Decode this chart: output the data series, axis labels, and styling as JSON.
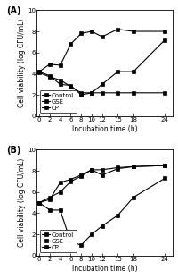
{
  "panel_A": {
    "label": "(A)",
    "x": [
      0,
      2,
      4,
      6,
      8,
      10,
      12,
      15,
      18,
      24
    ],
    "Control": [
      4.2,
      4.9,
      4.8,
      6.8,
      7.8,
      8.0,
      7.5,
      8.2,
      8.0,
      8.0
    ],
    "GSE": [
      4.2,
      3.8,
      3.0,
      2.9,
      2.0,
      2.2,
      3.0,
      4.2,
      4.2,
      7.2
    ],
    "CP": [
      4.1,
      3.7,
      3.4,
      2.8,
      2.2,
      2.2,
      2.2,
      2.2,
      2.2,
      2.2
    ]
  },
  "panel_B": {
    "label": "(B)",
    "x": [
      0,
      2,
      4,
      6,
      8,
      10,
      12,
      15,
      18,
      24
    ],
    "Control": [
      5.0,
      5.3,
      6.9,
      7.2,
      7.6,
      8.1,
      7.6,
      8.2,
      8.4,
      8.5
    ],
    "GSE": [
      5.0,
      5.5,
      6.0,
      7.0,
      7.5,
      8.1,
      8.1,
      8.3,
      8.4,
      8.5
    ],
    "CP": [
      5.0,
      4.3,
      4.3,
      1.3,
      1.0,
      2.0,
      2.8,
      3.8,
      5.5,
      7.3
    ]
  },
  "ylabel": "Cell viability (log CFU/mL)",
  "xlabel": "Incubation time (h)",
  "ylim": [
    0,
    10
  ],
  "yticks": [
    0,
    2,
    4,
    6,
    8,
    10
  ],
  "xticks": [
    0,
    2,
    4,
    6,
    8,
    10,
    12,
    15,
    18,
    24
  ],
  "linewidth": 0.8,
  "markersize": 3.0,
  "color": "#000000",
  "fontsize_label": 5.5,
  "fontsize_tick": 5.0,
  "fontsize_legend": 5.0,
  "fontsize_panel": 7
}
